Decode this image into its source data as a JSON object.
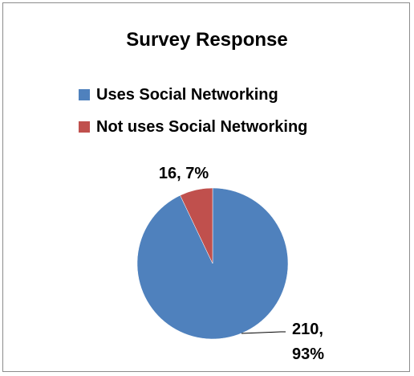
{
  "chart_data": {
    "type": "pie",
    "title": "Survey Response",
    "slices": [
      {
        "label": "Uses Social Networking",
        "value": 210,
        "percent": "93%",
        "color": "#4f81bd",
        "data_label": [
          "210,",
          "93%"
        ]
      },
      {
        "label": "Not uses Social Networking",
        "value": 16,
        "percent": "7%",
        "color": "#c0504d",
        "data_label": [
          "16, 7%"
        ]
      }
    ],
    "legend_position": "top"
  },
  "legend": {
    "items": [
      {
        "label": "Uses Social Networking",
        "color": "#4f81bd"
      },
      {
        "label": "Not uses Social Networking",
        "color": "#c0504d"
      }
    ]
  }
}
